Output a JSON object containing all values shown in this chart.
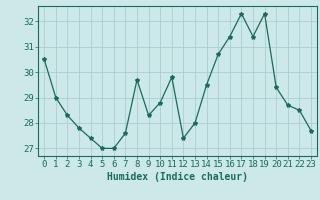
{
  "x": [
    0,
    1,
    2,
    3,
    4,
    5,
    6,
    7,
    8,
    9,
    10,
    11,
    12,
    13,
    14,
    15,
    16,
    17,
    18,
    19,
    20,
    21,
    22,
    23
  ],
  "y": [
    30.5,
    29.0,
    28.3,
    27.8,
    27.4,
    27.0,
    27.0,
    27.6,
    29.7,
    28.3,
    28.8,
    29.8,
    27.4,
    28.0,
    29.5,
    30.7,
    31.4,
    32.3,
    31.4,
    32.3,
    29.4,
    28.7,
    28.5,
    27.7
  ],
  "line_color": "#1a6b5a",
  "marker": "*",
  "marker_size": 3,
  "bg_color": "#cce8e8",
  "grid_color": "#aacfcf",
  "xlabel": "Humidex (Indice chaleur)",
  "ylabel": "",
  "xlim": [
    -0.5,
    23.5
  ],
  "ylim": [
    26.7,
    32.6
  ],
  "yticks": [
    27,
    28,
    29,
    30,
    31,
    32
  ],
  "xticks": [
    0,
    1,
    2,
    3,
    4,
    5,
    6,
    7,
    8,
    9,
    10,
    11,
    12,
    13,
    14,
    15,
    16,
    17,
    18,
    19,
    20,
    21,
    22,
    23
  ],
  "tick_color": "#1a6b5a",
  "label_color": "#1a6b5a",
  "spine_color": "#1a6b5a",
  "xlabel_fontsize": 7,
  "tick_fontsize": 6.5
}
